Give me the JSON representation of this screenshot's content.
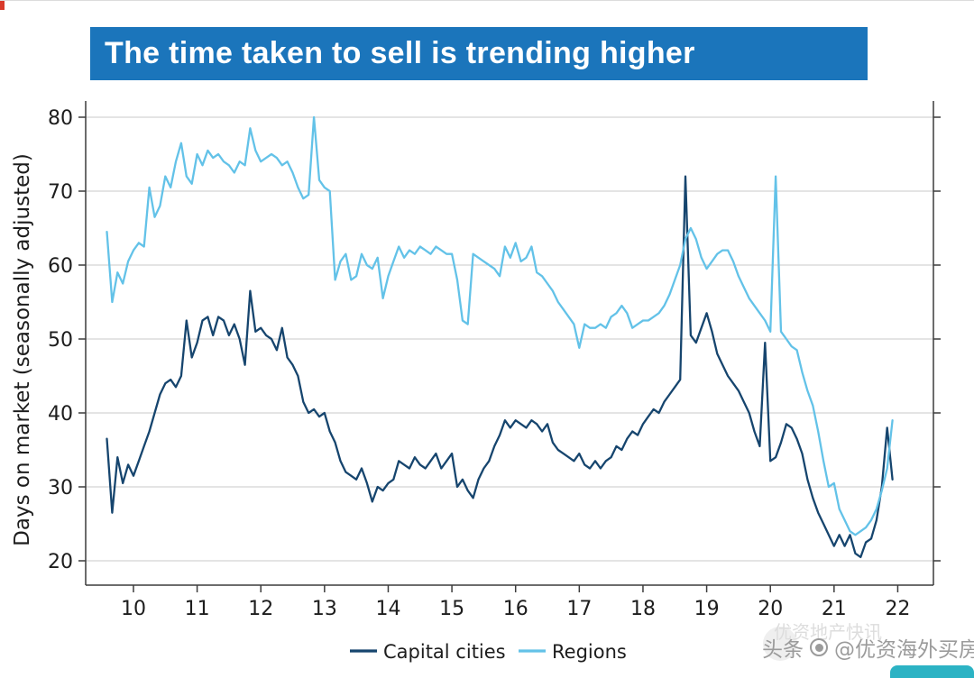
{
  "page": {
    "title": "The time taken to sell is trending higher",
    "watermark": {
      "prefix": "头条",
      "handle": "@优资海外买房",
      "faint_text": "优资地产快讯"
    },
    "colors": {
      "title_bar": "#1b75bb",
      "capital": "#16456e",
      "regions": "#63c2e8",
      "grid": "#c9c9c9",
      "axis": "#3c3c3c",
      "watermark_teal": "#2cb3c4",
      "artifact_red": "#d93a2b"
    }
  },
  "chart_data": {
    "type": "line",
    "title": "The time taken to sell is trending higher",
    "xlabel": "",
    "ylabel": "Days on market (seasonally adjusted)",
    "x_unit": "year",
    "x_start": 2009.5833,
    "x_step": 0.0833333,
    "x_range": [
      2009.25,
      2022.56
    ],
    "y_range": [
      20,
      80
    ],
    "ylim": [
      20,
      80
    ],
    "grid": true,
    "legend_position": "bottom",
    "y_ticks": [
      20,
      30,
      40,
      50,
      60,
      70,
      80
    ],
    "x_ticks": [
      {
        "value": 2010,
        "label": "10"
      },
      {
        "value": 2011,
        "label": "11"
      },
      {
        "value": 2012,
        "label": "12"
      },
      {
        "value": 2013,
        "label": "13"
      },
      {
        "value": 2014,
        "label": "14"
      },
      {
        "value": 2015,
        "label": "15"
      },
      {
        "value": 2016,
        "label": "16"
      },
      {
        "value": 2017,
        "label": "17"
      },
      {
        "value": 2018,
        "label": "18"
      },
      {
        "value": 2019,
        "label": "19"
      },
      {
        "value": 2020,
        "label": "20"
      },
      {
        "value": 2021,
        "label": "21"
      },
      {
        "value": 2022,
        "label": "22"
      }
    ],
    "series": [
      {
        "name": "Capital cities",
        "color": "#16456e",
        "values": [
          36.5,
          26.5,
          34,
          30.5,
          33,
          31.5,
          33.5,
          35.5,
          37.5,
          40,
          42.5,
          44,
          44.5,
          43.5,
          45,
          52.5,
          47.5,
          49.5,
          52.5,
          53,
          50.5,
          53,
          52.5,
          50.5,
          52,
          50,
          46.5,
          56.5,
          51,
          51.5,
          50.5,
          50,
          48.5,
          51.5,
          47.5,
          46.5,
          45,
          41.5,
          40,
          40.5,
          39.5,
          40,
          37.5,
          36,
          33.5,
          32,
          31.5,
          31,
          32.5,
          30.5,
          28,
          30,
          29.5,
          30.5,
          31,
          33.5,
          33,
          32.5,
          34,
          33,
          32.5,
          33.5,
          34.5,
          32.5,
          33.5,
          34.5,
          30,
          31,
          29.5,
          28.5,
          31,
          32.5,
          33.5,
          35.5,
          37,
          39,
          38,
          39,
          38.5,
          38,
          39,
          38.5,
          37.5,
          38.5,
          36,
          35,
          34.5,
          34,
          33.5,
          34.5,
          33,
          32.5,
          33.5,
          32.5,
          33.5,
          34,
          35.5,
          35,
          36.5,
          37.5,
          37,
          38.5,
          39.5,
          40.5,
          40,
          41.5,
          42.5,
          43.5,
          44.5,
          72,
          50.5,
          49.5,
          51.5,
          53.5,
          51,
          48,
          46.5,
          45,
          44,
          43,
          41.5,
          40,
          37.5,
          35.5,
          49.5,
          33.5,
          34,
          36,
          38.5,
          38,
          36.5,
          34.5,
          31,
          28.5,
          26.5,
          25,
          23.5,
          22,
          23.5,
          22,
          23.5,
          21,
          20.5,
          22.5,
          23,
          25.5,
          30,
          38,
          31
        ]
      },
      {
        "name": "Regions",
        "color": "#63c2e8",
        "values": [
          64.5,
          55,
          59,
          57.5,
          60.5,
          62,
          63,
          62.5,
          70.5,
          66.5,
          68,
          72,
          70.5,
          74,
          76.5,
          72,
          71,
          75,
          73.5,
          75.5,
          74.5,
          75,
          74,
          73.5,
          72.5,
          74,
          73.5,
          78.5,
          75.5,
          74,
          74.5,
          75,
          74.5,
          73.5,
          74,
          72.5,
          70.5,
          69,
          69.5,
          80,
          71.5,
          70.5,
          70,
          58,
          60.5,
          61.5,
          58,
          58.5,
          61.5,
          60,
          59.5,
          61,
          55.5,
          58.5,
          60.5,
          62.5,
          61,
          62,
          61.5,
          62.5,
          62,
          61.5,
          62.5,
          62,
          61.5,
          61.5,
          58,
          52.5,
          52,
          61.5,
          61,
          60.5,
          60,
          59.5,
          58.5,
          62.5,
          61,
          63,
          60.5,
          61,
          62.5,
          59,
          58.5,
          57.5,
          56.5,
          55,
          54,
          53,
          52,
          48.8,
          52,
          51.5,
          51.5,
          52,
          51.5,
          53,
          53.5,
          54.5,
          53.5,
          51.5,
          52,
          52.5,
          52.5,
          53,
          53.5,
          54.5,
          56,
          58,
          60,
          63.5,
          65,
          63.5,
          61,
          59.5,
          60.5,
          61.5,
          62,
          62,
          60.5,
          58.5,
          57,
          55.5,
          54.5,
          53.5,
          52.5,
          51,
          72,
          51,
          50,
          49,
          48.5,
          45.5,
          43,
          41,
          37.5,
          33.5,
          30,
          30.5,
          27,
          25.5,
          24,
          23.5,
          24,
          24.5,
          25.5,
          27,
          29.5,
          32.5,
          39
        ]
      }
    ]
  }
}
